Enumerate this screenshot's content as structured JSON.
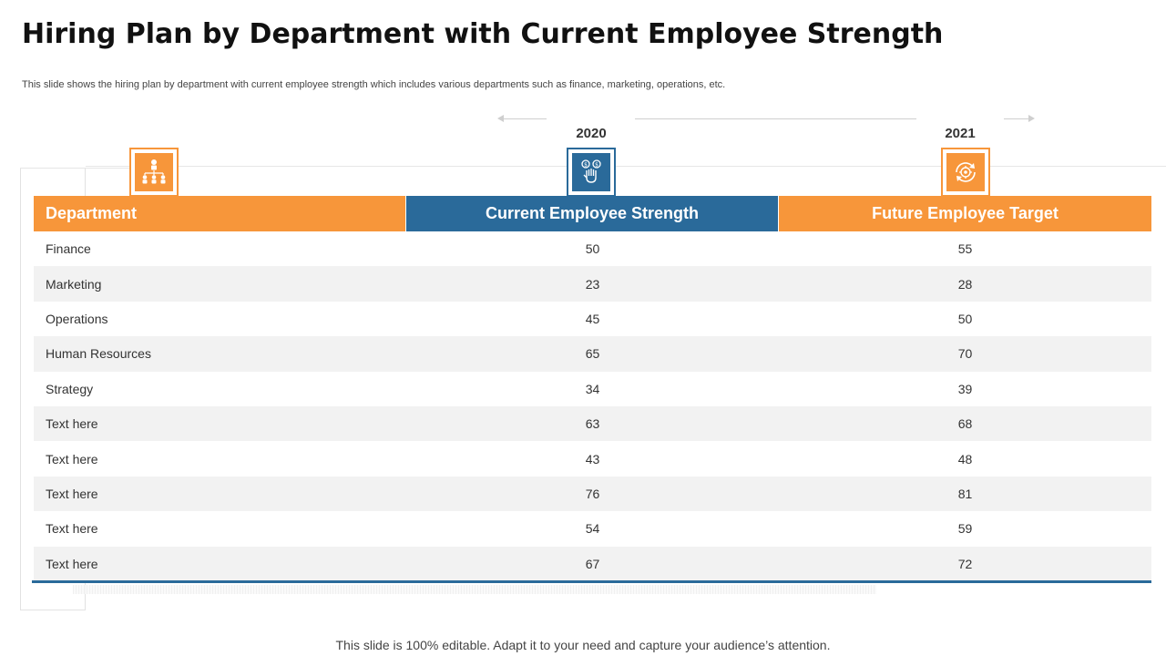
{
  "title": "Hiring Plan by Department with Current Employee Strength",
  "subtitle": "This slide shows the hiring plan by department with current employee strength which includes various departments such as finance, marketing, operations, etc.",
  "timeline": {
    "year_2020": "2020",
    "year_2021": "2021"
  },
  "icons": {
    "department": "org-chart-icon",
    "current": "hand-coins-icon",
    "future": "target-cycle-icon"
  },
  "colors": {
    "orange": "#f7963a",
    "blue": "#2a6a9a",
    "stripe": "#f2f2f2"
  },
  "table": {
    "headers": [
      "Department",
      "Current Employee Strength",
      "Future Employee Target"
    ],
    "rows": [
      {
        "department": "Finance",
        "current": "50",
        "future": "55"
      },
      {
        "department": "Marketing",
        "current": "23",
        "future": "28"
      },
      {
        "department": "Operations",
        "current": "45",
        "future": "50"
      },
      {
        "department": "Human Resources",
        "current": "65",
        "future": "70"
      },
      {
        "department": "Strategy",
        "current": "34",
        "future": "39"
      },
      {
        "department": "Text here",
        "current": "63",
        "future": "68"
      },
      {
        "department": "Text here",
        "current": "43",
        "future": "48"
      },
      {
        "department": "Text here",
        "current": "76",
        "future": "81"
      },
      {
        "department": "Text here",
        "current": "54",
        "future": "59"
      },
      {
        "department": "Text here",
        "current": "67",
        "future": "72"
      }
    ]
  },
  "footer": "This slide is 100% editable. Adapt it to your need and capture your audience’s attention."
}
